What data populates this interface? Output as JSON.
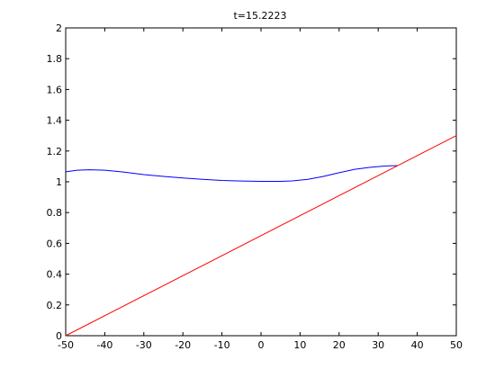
{
  "chart_data": {
    "type": "line",
    "title": "t=15.2223",
    "xlabel": "",
    "ylabel": "",
    "xlim": [
      -50,
      50
    ],
    "ylim": [
      0,
      2
    ],
    "grid": false,
    "x_ticks": [
      -50,
      -40,
      -30,
      -20,
      -10,
      0,
      10,
      20,
      30,
      40,
      50
    ],
    "y_ticks": [
      0,
      0.2,
      0.4,
      0.6,
      0.8,
      1,
      1.2,
      1.4,
      1.6,
      1.8,
      2
    ],
    "x_tick_labels": [
      "-50",
      "-40",
      "-30",
      "-20",
      "-10",
      "0",
      "10",
      "20",
      "30",
      "40",
      "50"
    ],
    "y_tick_labels": [
      "0",
      "0.2",
      "0.4",
      "0.6",
      "0.8",
      "1",
      "1.2",
      "1.4",
      "1.6",
      "1.8",
      "2"
    ],
    "series": [
      {
        "color": "#0000ff",
        "x": [
          -50,
          -47,
          -44,
          -40,
          -35,
          -30,
          -25,
          -20,
          -15,
          -10,
          -5,
          0,
          5,
          8,
          12,
          16,
          20,
          24,
          28,
          32,
          35
        ],
        "y": [
          1.065,
          1.075,
          1.078,
          1.075,
          1.063,
          1.047,
          1.035,
          1.025,
          1.016,
          1.009,
          1.005,
          1.003,
          1.003,
          1.006,
          1.016,
          1.035,
          1.059,
          1.081,
          1.094,
          1.103,
          1.105
        ]
      },
      {
        "color": "#ff0000",
        "x": [
          -50,
          50
        ],
        "y": [
          0,
          1.3
        ]
      }
    ]
  }
}
